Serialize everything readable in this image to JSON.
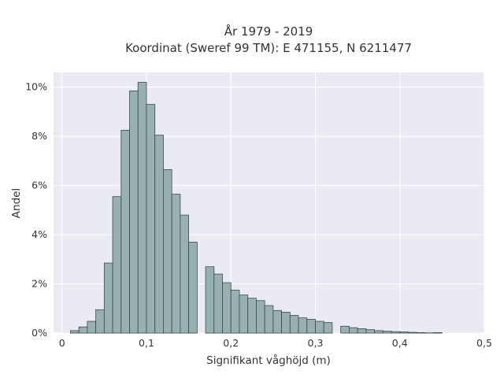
{
  "chart_data": {
    "type": "bar",
    "title_lines": [
      "År 1979 - 2019",
      "Koordinat (Sweref 99 TM): E 471155, N 6211477"
    ],
    "xlabel": "Signifikant våghöjd (m)",
    "ylabel": "Andel",
    "xlim": [
      -0.01,
      0.5
    ],
    "ylim": [
      0,
      10.6
    ],
    "x_ticks": [
      0,
      0.1,
      0.2,
      0.3,
      0.4,
      0.5
    ],
    "x_tick_labels": [
      "0",
      "0,1",
      "0,2",
      "0,3",
      "0,4",
      "0,5"
    ],
    "y_ticks": [
      0,
      2,
      4,
      6,
      8,
      10
    ],
    "y_tick_labels": [
      "0%",
      "2%",
      "4%",
      "6%",
      "8%",
      "10%"
    ],
    "bin_width": 0.01,
    "bin_starts": [
      0.01,
      0.02,
      0.03,
      0.04,
      0.05,
      0.06,
      0.07,
      0.08,
      0.09,
      0.1,
      0.11,
      0.12,
      0.13,
      0.14,
      0.15,
      0.17,
      0.18,
      0.19,
      0.2,
      0.21,
      0.22,
      0.23,
      0.24,
      0.25,
      0.26,
      0.27,
      0.28,
      0.29,
      0.3,
      0.31,
      0.33,
      0.34,
      0.35,
      0.36,
      0.37,
      0.38,
      0.39,
      0.4,
      0.41,
      0.42,
      0.43,
      0.44
    ],
    "values": [
      0.1,
      0.25,
      0.48,
      0.95,
      2.85,
      5.55,
      8.25,
      9.85,
      10.2,
      9.3,
      8.05,
      6.65,
      5.65,
      4.8,
      3.7,
      2.7,
      2.4,
      2.05,
      1.75,
      1.55,
      1.42,
      1.32,
      1.12,
      0.92,
      0.85,
      0.72,
      0.62,
      0.56,
      0.48,
      0.43,
      0.28,
      0.22,
      0.18,
      0.14,
      0.1,
      0.08,
      0.06,
      0.05,
      0.03,
      0.02,
      0.01,
      0.02
    ],
    "grid": true,
    "colors": {
      "bar": "#98b1b0",
      "bar_edge": "#3a4a4a",
      "plot_bg": "#eaeaf2",
      "grid": "#ffffff"
    }
  }
}
